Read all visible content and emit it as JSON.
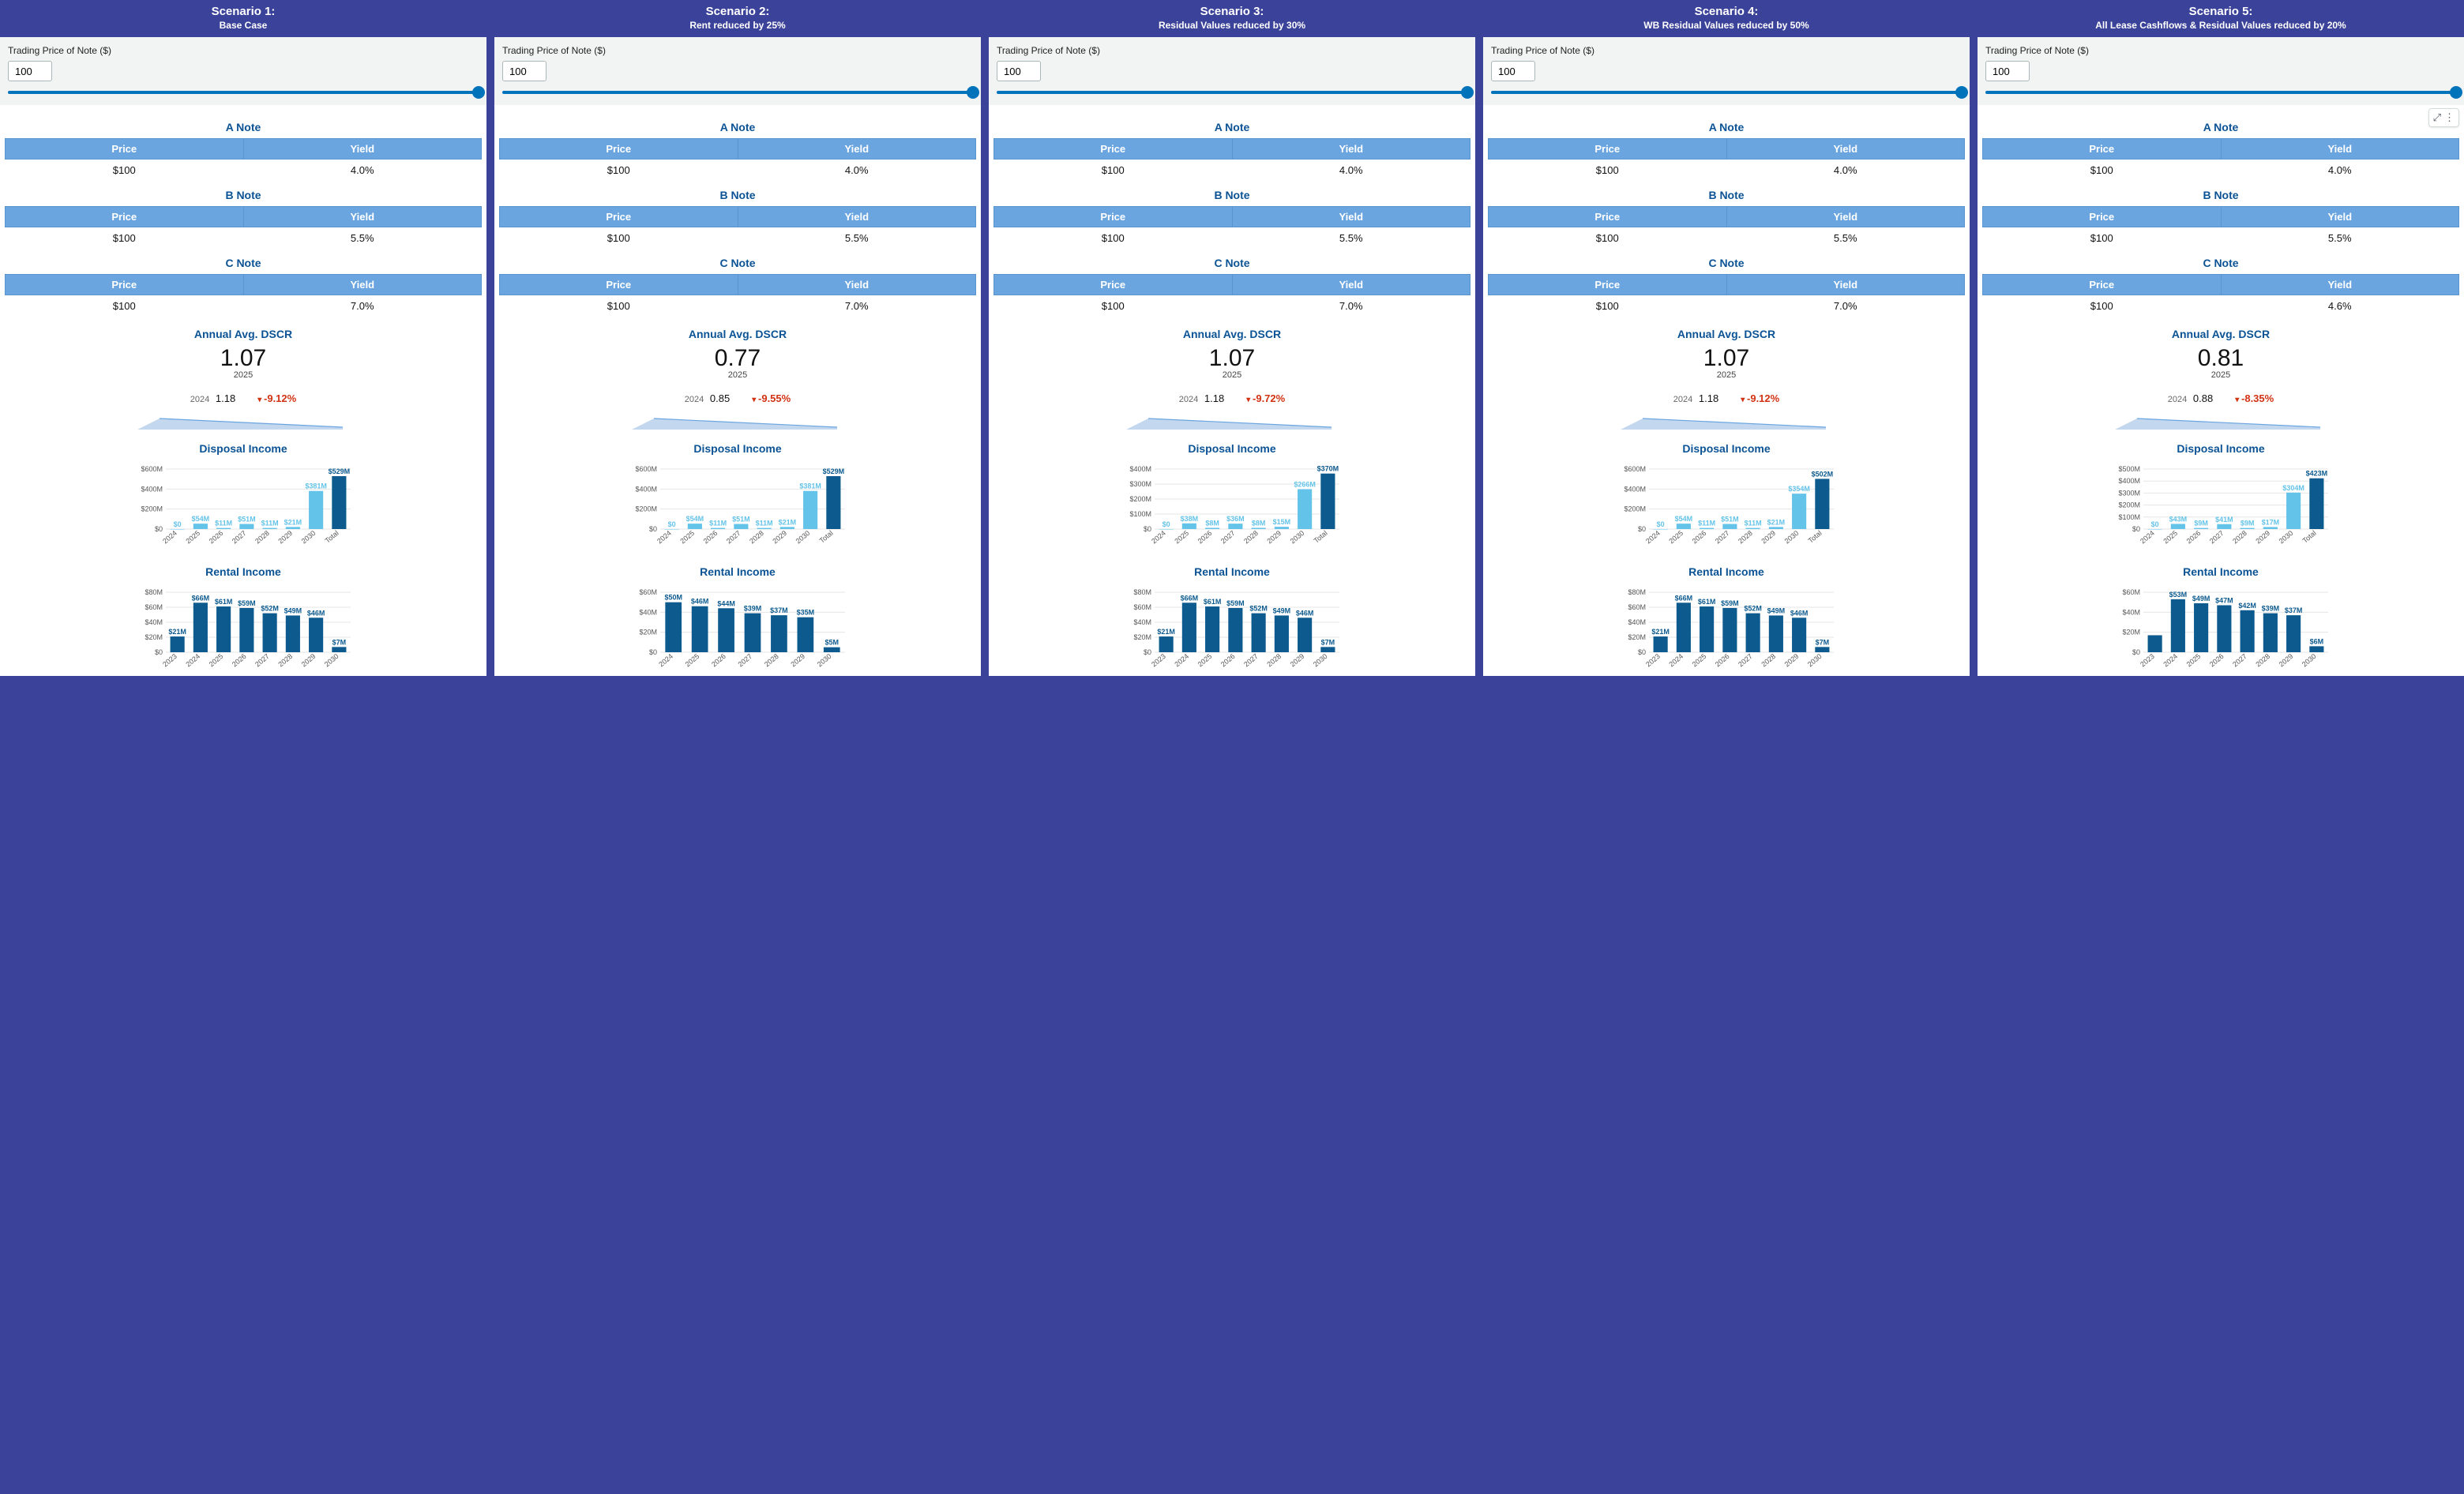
{
  "colors": {
    "page_bg": "#3b4299",
    "panel_bg": "#ffffff",
    "header_bg": "#3b4299",
    "header_fg": "#ffffff",
    "accent": "#0b5394",
    "table_header_bg": "#6aa5e0",
    "table_header_fg": "#ffffff",
    "slider": "#0073bb",
    "bar_light": "#64c3e8",
    "bar_dark": "#0c5a8e",
    "danger": "#d13212",
    "grid": "#e6e6e6",
    "axis_text": "#555555"
  },
  "common": {
    "trading_label": "Trading Price of Note ($)",
    "trading_value": "100",
    "note_headers": {
      "price": "Price",
      "yield": "Yield"
    },
    "notes_titles": {
      "a": "A Note",
      "b": "B Note",
      "c": "C Note"
    },
    "dscr_title": "Annual Avg. DSCR",
    "disposal_title": "Disposal Income",
    "rental_title": "Rental Income",
    "dscr_current_year": "2025",
    "dscr_prev_year": "2024"
  },
  "scenarios": [
    {
      "num": "Scenario 1:",
      "name": "Base Case",
      "notes": {
        "a": {
          "price": "$100",
          "yield": "4.0%"
        },
        "b": {
          "price": "$100",
          "yield": "5.5%"
        },
        "c": {
          "price": "$100",
          "yield": "7.0%"
        }
      },
      "dscr": {
        "current": "1.07",
        "prev": "1.18",
        "change": "-9.12%",
        "spark_points": [
          28,
          14,
          260,
          25,
          260,
          28
        ]
      },
      "disposal": {
        "ymax": 600,
        "unit": "M",
        "yticks": [
          0,
          200,
          400,
          600
        ],
        "categories": [
          "2024",
          "2025",
          "2026",
          "2027",
          "2028",
          "2029",
          "2030",
          "Total"
        ],
        "values": [
          0,
          54,
          11,
          51,
          11,
          21,
          381,
          529
        ],
        "labels": [
          "$0",
          "$54M",
          "$11M",
          "$51M",
          "$11M",
          "$21M",
          "$381M",
          "$529M"
        ],
        "dark_last": true
      },
      "rental": {
        "ymax": 80,
        "unit": "M",
        "yticks": [
          0,
          20,
          40,
          60,
          80
        ],
        "categories": [
          "2023",
          "2024",
          "2025",
          "2026",
          "2027",
          "2028",
          "2029",
          "2030"
        ],
        "values": [
          21,
          66,
          61,
          59,
          52,
          49,
          46,
          7
        ],
        "labels": [
          "$21M",
          "$66M",
          "$61M",
          "$59M",
          "$52M",
          "$49M",
          "$46M",
          "$7M"
        ]
      }
    },
    {
      "num": "Scenario 2:",
      "name": "Rent reduced by 25%",
      "notes": {
        "a": {
          "price": "$100",
          "yield": "4.0%"
        },
        "b": {
          "price": "$100",
          "yield": "5.5%"
        },
        "c": {
          "price": "$100",
          "yield": "7.0%"
        }
      },
      "dscr": {
        "current": "0.77",
        "prev": "0.85",
        "change": "-9.55%",
        "spark_points": [
          28,
          14,
          260,
          25,
          260,
          28
        ]
      },
      "disposal": {
        "ymax": 600,
        "unit": "M",
        "yticks": [
          0,
          200,
          400,
          600
        ],
        "categories": [
          "2024",
          "2025",
          "2026",
          "2027",
          "2028",
          "2029",
          "2030",
          "Total"
        ],
        "values": [
          0,
          54,
          11,
          51,
          11,
          21,
          381,
          529
        ],
        "labels": [
          "$0",
          "$54M",
          "$11M",
          "$51M",
          "$11M",
          "$21M",
          "$381M",
          "$529M"
        ],
        "dark_last": true
      },
      "rental": {
        "ymax": 60,
        "unit": "M",
        "yticks": [
          0,
          20,
          40,
          60
        ],
        "categories": [
          "2024",
          "2025",
          "2026",
          "2027",
          "2028",
          "2029",
          "2030"
        ],
        "values": [
          50,
          46,
          44,
          39,
          37,
          35,
          5
        ],
        "labels": [
          "$50M",
          "$46M",
          "$44M",
          "$39M",
          "$37M",
          "$35M",
          "$5M"
        ]
      }
    },
    {
      "num": "Scenario 3:",
      "name": "Residual Values reduced by 30%",
      "notes": {
        "a": {
          "price": "$100",
          "yield": "4.0%"
        },
        "b": {
          "price": "$100",
          "yield": "5.5%"
        },
        "c": {
          "price": "$100",
          "yield": "7.0%"
        }
      },
      "dscr": {
        "current": "1.07",
        "prev": "1.18",
        "change": "-9.72%",
        "spark_points": [
          28,
          14,
          260,
          25,
          260,
          28
        ]
      },
      "disposal": {
        "ymax": 400,
        "unit": "M",
        "yticks": [
          0,
          100,
          200,
          300,
          400
        ],
        "categories": [
          "2024",
          "2025",
          "2026",
          "2027",
          "2028",
          "2029",
          "2030",
          "Total"
        ],
        "values": [
          0,
          38,
          8,
          36,
          8,
          15,
          266,
          370
        ],
        "labels": [
          "$0",
          "$38M",
          "$8M",
          "$36M",
          "$8M",
          "$15M",
          "$266M",
          "$370M"
        ],
        "dark_last": true
      },
      "rental": {
        "ymax": 80,
        "unit": "M",
        "yticks": [
          0,
          20,
          40,
          60,
          80
        ],
        "categories": [
          "2023",
          "2024",
          "2025",
          "2026",
          "2027",
          "2028",
          "2029",
          "2030"
        ],
        "values": [
          21,
          66,
          61,
          59,
          52,
          49,
          46,
          7
        ],
        "labels": [
          "$21M",
          "$66M",
          "$61M",
          "$59M",
          "$52M",
          "$49M",
          "$46M",
          "$7M"
        ]
      }
    },
    {
      "num": "Scenario 4:",
      "name": "WB Residual Values reduced by 50%",
      "notes": {
        "a": {
          "price": "$100",
          "yield": "4.0%"
        },
        "b": {
          "price": "$100",
          "yield": "5.5%"
        },
        "c": {
          "price": "$100",
          "yield": "7.0%"
        }
      },
      "dscr": {
        "current": "1.07",
        "prev": "1.18",
        "change": "-9.12%",
        "spark_points": [
          28,
          14,
          260,
          25,
          260,
          28
        ]
      },
      "disposal": {
        "ymax": 600,
        "unit": "M",
        "yticks": [
          0,
          200,
          400,
          600
        ],
        "categories": [
          "2024",
          "2025",
          "2026",
          "2027",
          "2028",
          "2029",
          "2030",
          "Total"
        ],
        "values": [
          0,
          54,
          11,
          51,
          11,
          21,
          354,
          502
        ],
        "labels": [
          "$0",
          "$54M",
          "$11M",
          "$51M",
          "$11M",
          "$21M",
          "$354M",
          "$502M"
        ],
        "dark_last": true
      },
      "rental": {
        "ymax": 80,
        "unit": "M",
        "yticks": [
          0,
          20,
          40,
          60,
          80
        ],
        "categories": [
          "2023",
          "2024",
          "2025",
          "2026",
          "2027",
          "2028",
          "2029",
          "2030"
        ],
        "values": [
          21,
          66,
          61,
          59,
          52,
          49,
          46,
          7
        ],
        "labels": [
          "$21M",
          "$66M",
          "$61M",
          "$59M",
          "$52M",
          "$49M",
          "$46M",
          "$7M"
        ]
      }
    },
    {
      "num": "Scenario 5:",
      "name": "All Lease Cashflows & Residual Values reduced by 20%",
      "notes": {
        "a": {
          "price": "$100",
          "yield": "4.0%"
        },
        "b": {
          "price": "$100",
          "yield": "5.5%"
        },
        "c": {
          "price": "$100",
          "yield": "4.6%"
        }
      },
      "dscr": {
        "current": "0.81",
        "prev": "0.88",
        "change": "-8.35%",
        "spark_points": [
          28,
          14,
          260,
          25,
          260,
          28
        ]
      },
      "disposal": {
        "ymax": 500,
        "unit": "M",
        "yticks": [
          0,
          100,
          200,
          300,
          400,
          500
        ],
        "categories": [
          "2024",
          "2025",
          "2026",
          "2027",
          "2028",
          "2029",
          "2030",
          "Total"
        ],
        "values": [
          0,
          43,
          9,
          41,
          9,
          17,
          304,
          423
        ],
        "labels": [
          "$0",
          "$43M",
          "$9M",
          "$41M",
          "$9M",
          "$17M",
          "$304M",
          "$423M"
        ],
        "dark_last": true
      },
      "rental": {
        "ymax": 60,
        "unit": "M",
        "yticks": [
          0,
          20,
          40,
          60
        ],
        "categories": [
          "2023",
          "2024",
          "2025",
          "2026",
          "2027",
          "2028",
          "2029",
          "2030"
        ],
        "values": [
          17,
          53,
          49,
          47,
          42,
          39,
          37,
          6
        ],
        "labels": [
          "",
          "$53M",
          "$49M",
          "$47M",
          "$42M",
          "$39M",
          "$37M",
          "$6M"
        ]
      },
      "has_expand_widget": true
    }
  ]
}
